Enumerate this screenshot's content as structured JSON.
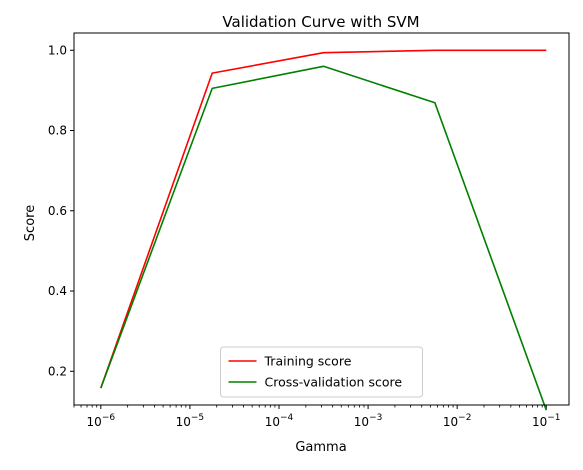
{
  "chart_data": {
    "type": "line",
    "title": "Validation Curve with SVM",
    "xlabel": "Gamma",
    "ylabel": "Score",
    "xscale": "log",
    "xlim": [
      5e-07,
      0.18
    ],
    "ylim": [
      0.116,
      1.043
    ],
    "x": [
      1e-06,
      1.78e-05,
      0.000316,
      0.00562,
      0.1
    ],
    "series": [
      {
        "name": "Training score",
        "color": "#ff0000",
        "values": [
          0.158,
          0.943,
          0.994,
          1.0,
          1.0
        ]
      },
      {
        "name": "Cross-validation score",
        "color": "#008000",
        "values": [
          0.158,
          0.905,
          0.96,
          0.869,
          0.103
        ]
      }
    ],
    "x_ticks": [
      {
        "value": 1e-06,
        "base": "10",
        "exp": "−6"
      },
      {
        "value": 1e-05,
        "base": "10",
        "exp": "−5"
      },
      {
        "value": 0.0001,
        "base": "10",
        "exp": "−4"
      },
      {
        "value": 0.001,
        "base": "10",
        "exp": "−3"
      },
      {
        "value": 0.01,
        "base": "10",
        "exp": "−2"
      },
      {
        "value": 0.1,
        "base": "10",
        "exp": "−1"
      }
    ],
    "y_ticks": [
      "0.2",
      "0.4",
      "0.6",
      "0.8",
      "1.0"
    ],
    "legend": "lower center",
    "grid": false
  }
}
